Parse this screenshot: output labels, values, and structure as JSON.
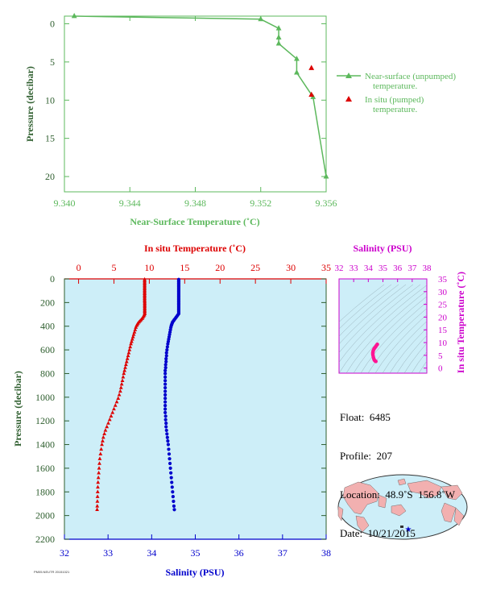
{
  "chart_data": [
    {
      "type": "line",
      "xlabel": "Near-Surface Temperature (˚C)",
      "ylabel": "Pressure (decibar)",
      "xlim": [
        9.34,
        9.356
      ],
      "ylim": [
        22,
        -1
      ],
      "xticks": [
        "9.340",
        "9.344",
        "9.348",
        "9.352",
        "9.356"
      ],
      "xtick_values": [
        9.34,
        9.344,
        9.348,
        9.352,
        9.356
      ],
      "yticks": [
        "0",
        "5",
        "10",
        "15",
        "20"
      ],
      "ytick_values": [
        0,
        5,
        10,
        15,
        20
      ],
      "grid": false,
      "legend_position": "right",
      "colors": {
        "unpumped": "#5cb85c",
        "pumped": "#dd0000",
        "axis": "#5cb85c"
      },
      "series": [
        {
          "name": "Near-surface (unpumped) temperature.",
          "marker": "triangle-line",
          "x": [
            9.3406,
            9.352,
            9.3531,
            9.3531,
            9.3531,
            9.3542,
            9.3542,
            9.3552,
            9.356
          ],
          "y": [
            -1.0,
            -0.6,
            0.6,
            1.8,
            2.6,
            4.6,
            6.4,
            9.6,
            20.0
          ]
        },
        {
          "name": "In situ (pumped) temperature.",
          "marker": "triangle",
          "x": [
            9.3551,
            9.3551
          ],
          "y": [
            5.8,
            9.3
          ]
        }
      ]
    },
    {
      "type": "scatter",
      "title_top": "In situ Temperature (˚C)",
      "xlabel": "Salinity (PSU)",
      "ylabel": "Pressure (decibar)",
      "temp_lim": [
        -2,
        35
      ],
      "sal_lim": [
        32,
        38
      ],
      "pressure_lim": [
        0,
        2200
      ],
      "temp_ticks": [
        "0",
        "5",
        "10",
        "15",
        "20",
        "25",
        "30",
        "35"
      ],
      "temp_tick_values": [
        0,
        5,
        10,
        15,
        20,
        25,
        30,
        35
      ],
      "sal_ticks": [
        "32",
        "33",
        "34",
        "35",
        "36",
        "37",
        "38"
      ],
      "sal_tick_values": [
        32,
        33,
        34,
        35,
        36,
        37,
        38
      ],
      "pressure_ticks": [
        "0",
        "200",
        "400",
        "600",
        "800",
        "1000",
        "1200",
        "1400",
        "1600",
        "1800",
        "2000",
        "2200"
      ],
      "pressure_tick_values": [
        0,
        200,
        400,
        600,
        800,
        1000,
        1200,
        1400,
        1600,
        1800,
        2000,
        2200
      ],
      "colors": {
        "temperature": "#dd0000",
        "salinity": "#0000cc",
        "background": "#cdeef8",
        "temp_axis": "#dd0000",
        "sal_axis": "#0000cc",
        "p_axis": "#2e5e2e"
      },
      "series": [
        {
          "name": "temperature",
          "pressure": [
            5,
            15,
            25,
            35,
            45,
            55,
            65,
            75,
            85,
            95,
            105,
            115,
            125,
            135,
            145,
            155,
            165,
            175,
            185,
            195,
            205,
            215,
            225,
            235,
            245,
            255,
            265,
            275,
            285,
            295,
            305,
            315,
            325,
            335,
            345,
            355,
            365,
            375,
            385,
            395,
            410,
            430,
            450,
            470,
            490,
            510,
            530,
            550,
            575,
            600,
            625,
            650,
            675,
            700,
            725,
            750,
            775,
            800,
            830,
            860,
            890,
            920,
            950,
            980,
            1010,
            1040,
            1070,
            1100,
            1130,
            1160,
            1190,
            1220,
            1250,
            1280,
            1310,
            1340,
            1370,
            1400,
            1440,
            1480,
            1520,
            1560,
            1600,
            1640,
            1680,
            1720,
            1760,
            1800,
            1840,
            1880,
            1920,
            1950
          ],
          "values": [
            9.34,
            9.34,
            9.34,
            9.34,
            9.34,
            9.34,
            9.34,
            9.34,
            9.34,
            9.34,
            9.34,
            9.34,
            9.34,
            9.34,
            9.34,
            9.34,
            9.34,
            9.34,
            9.34,
            9.35,
            9.35,
            9.35,
            9.35,
            9.35,
            9.35,
            9.35,
            9.35,
            9.35,
            9.35,
            9.35,
            9.3,
            9.2,
            9.1,
            9.0,
            8.85,
            8.7,
            8.55,
            8.4,
            8.3,
            8.2,
            8.1,
            8.0,
            7.9,
            7.8,
            7.7,
            7.6,
            7.5,
            7.4,
            7.3,
            7.2,
            7.1,
            7.0,
            6.9,
            6.8,
            6.7,
            6.6,
            6.5,
            6.4,
            6.3,
            6.2,
            6.1,
            6.0,
            5.9,
            5.75,
            5.6,
            5.4,
            5.2,
            5.0,
            4.8,
            4.6,
            4.4,
            4.2,
            4.0,
            3.8,
            3.65,
            3.5,
            3.4,
            3.3,
            3.2,
            3.1,
            3.0,
            2.95,
            2.9,
            2.85,
            2.8,
            2.75,
            2.72,
            2.7,
            2.68,
            2.66,
            2.64,
            2.62
          ]
        },
        {
          "name": "salinity",
          "pressure": [
            5,
            15,
            25,
            35,
            45,
            55,
            65,
            75,
            85,
            95,
            105,
            115,
            125,
            135,
            145,
            155,
            165,
            175,
            185,
            195,
            205,
            215,
            225,
            235,
            245,
            255,
            265,
            275,
            285,
            295,
            305,
            315,
            325,
            335,
            345,
            355,
            365,
            375,
            385,
            395,
            410,
            430,
            450,
            470,
            490,
            510,
            530,
            550,
            575,
            600,
            625,
            650,
            675,
            700,
            725,
            750,
            775,
            800,
            830,
            860,
            890,
            920,
            950,
            980,
            1010,
            1040,
            1070,
            1100,
            1130,
            1160,
            1190,
            1220,
            1250,
            1280,
            1310,
            1340,
            1370,
            1400,
            1440,
            1480,
            1520,
            1560,
            1600,
            1640,
            1680,
            1720,
            1760,
            1800,
            1840,
            1880,
            1920,
            1950
          ],
          "values": [
            34.62,
            34.62,
            34.62,
            34.62,
            34.62,
            34.62,
            34.62,
            34.62,
            34.62,
            34.62,
            34.62,
            34.62,
            34.62,
            34.62,
            34.62,
            34.62,
            34.62,
            34.62,
            34.62,
            34.62,
            34.62,
            34.62,
            34.62,
            34.62,
            34.62,
            34.62,
            34.62,
            34.62,
            34.62,
            34.62,
            34.6,
            34.58,
            34.56,
            34.54,
            34.52,
            34.5,
            34.48,
            34.47,
            34.46,
            34.45,
            34.44,
            34.43,
            34.42,
            34.41,
            34.4,
            34.39,
            34.38,
            34.37,
            34.36,
            34.35,
            34.34,
            34.34,
            34.33,
            34.33,
            34.32,
            34.32,
            34.31,
            34.31,
            34.31,
            34.31,
            34.31,
            34.31,
            34.31,
            34.31,
            34.31,
            34.31,
            34.31,
            34.31,
            34.31,
            34.32,
            34.32,
            34.33,
            34.33,
            34.34,
            34.35,
            34.36,
            34.37,
            34.38,
            34.39,
            34.4,
            34.41,
            34.42,
            34.43,
            34.44,
            34.45,
            34.46,
            34.47,
            34.48,
            34.49,
            34.5,
            34.51,
            34.52
          ]
        }
      ]
    },
    {
      "type": "scatter",
      "title": "Salinity (PSU)",
      "ylabel": "In situ Temperature (˚C)",
      "xlim": [
        32,
        38
      ],
      "ylim": [
        -2,
        35
      ],
      "xticks": [
        "32",
        "33",
        "34",
        "35",
        "36",
        "37",
        "38"
      ],
      "xtick_values": [
        32,
        33,
        34,
        35,
        36,
        37,
        38
      ],
      "yticks": [
        "0",
        "5",
        "10",
        "15",
        "20",
        "25",
        "30",
        "35"
      ],
      "ytick_values": [
        0,
        5,
        10,
        15,
        20,
        25,
        30,
        35
      ],
      "colors": {
        "points": "#ff1493",
        "axis": "#cc00cc",
        "background": "#cdeef8"
      },
      "x": [
        34.62,
        34.6,
        34.56,
        34.52,
        34.48,
        34.45,
        34.42,
        34.4,
        34.37,
        34.35,
        34.33,
        34.32,
        34.31,
        34.31,
        34.31,
        34.32,
        34.34,
        34.36,
        34.38,
        34.4,
        34.42,
        34.44,
        34.46,
        34.48,
        34.5,
        34.52
      ],
      "y": [
        9.34,
        9.2,
        8.9,
        8.5,
        8.2,
        8.0,
        7.8,
        7.6,
        7.3,
        7.0,
        6.7,
        6.4,
        6.1,
        5.8,
        5.4,
        5.0,
        4.5,
        4.0,
        3.6,
        3.3,
        3.1,
        2.95,
        2.85,
        2.75,
        2.68,
        2.62
      ]
    }
  ],
  "legend": {
    "unpumped_line1": "Near-surface (unpumped)",
    "unpumped_line2": "temperature.",
    "pumped_line1": "In situ (pumped)",
    "pumped_line2": "temperature."
  },
  "info": {
    "float": "Float:  6485",
    "profile": "Profile:  207",
    "location": "Location:  48.9˚S  156.8˚W",
    "date": "Date:  10/21/2015"
  },
  "stamp": "PM05.NEUTR 20151021",
  "map": {
    "land_color": "#f2b0b0",
    "ocean_color": "#cdeef8",
    "float_marker_color": "#0000cc"
  }
}
